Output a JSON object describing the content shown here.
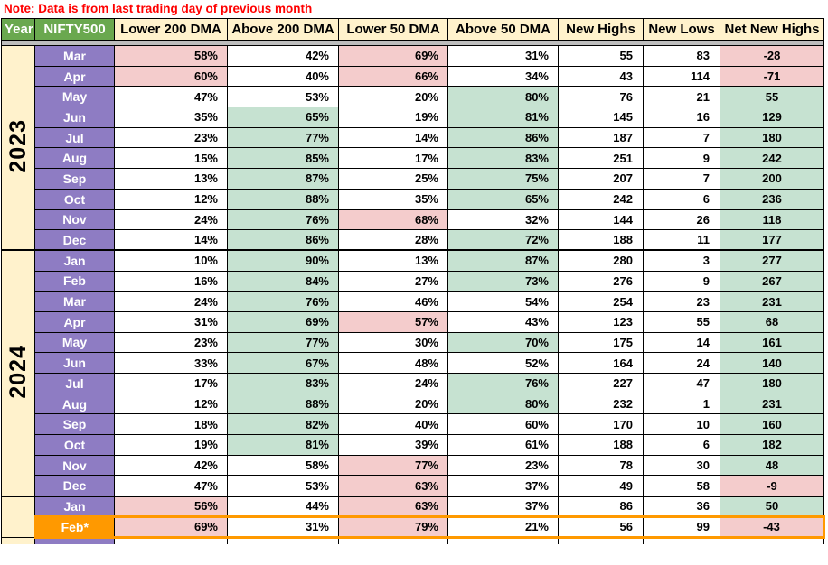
{
  "note": "Note: Data is from last trading day of previous month",
  "colors": {
    "note_red": "#FF0000",
    "header_green": "#6AA84F",
    "header_cream": "#FFF2CC",
    "month_purple": "#8E7CC3",
    "highlight_orange": "#FF9900",
    "bearish_pink": "#F4CCCC",
    "bullish_green": "#C6E2D1",
    "divider_gray": "#BDBDBD"
  },
  "table": {
    "columns": [
      {
        "label": "Year",
        "theme": "green"
      },
      {
        "label": "NIFTY500",
        "theme": "green"
      },
      {
        "label": "Lower 200 DMA",
        "theme": "cream"
      },
      {
        "label": "Above 200 DMA",
        "theme": "cream"
      },
      {
        "label": "Lower 50 DMA",
        "theme": "cream"
      },
      {
        "label": "Above 50 DMA",
        "theme": "cream"
      },
      {
        "label": "New Highs",
        "theme": "cream"
      },
      {
        "label": "New Lows",
        "theme": "cream"
      },
      {
        "label": "Net New Highs",
        "theme": "cream"
      }
    ],
    "year_groups": [
      {
        "label": "2023",
        "start": 0,
        "count": 10
      },
      {
        "label": "2024",
        "start": 10,
        "count": 12
      },
      {
        "label": "",
        "start": 22,
        "count": 2
      }
    ],
    "rows": [
      {
        "month": "Mar",
        "values": [
          "58%",
          "42%",
          "69%",
          "31%",
          "55",
          "83",
          "-28"
        ],
        "fills": [
          "p",
          "w",
          "p",
          "w",
          "w",
          "w",
          "p"
        ],
        "highlight": false
      },
      {
        "month": "Apr",
        "values": [
          "60%",
          "40%",
          "66%",
          "34%",
          "43",
          "114",
          "-71"
        ],
        "fills": [
          "p",
          "w",
          "p",
          "w",
          "w",
          "w",
          "p"
        ],
        "highlight": false
      },
      {
        "month": "May",
        "values": [
          "47%",
          "53%",
          "20%",
          "80%",
          "76",
          "21",
          "55"
        ],
        "fills": [
          "w",
          "w",
          "w",
          "g",
          "w",
          "w",
          "g"
        ],
        "highlight": false
      },
      {
        "month": "Jun",
        "values": [
          "35%",
          "65%",
          "19%",
          "81%",
          "145",
          "16",
          "129"
        ],
        "fills": [
          "w",
          "g",
          "w",
          "g",
          "w",
          "w",
          "g"
        ],
        "highlight": false
      },
      {
        "month": "Jul",
        "values": [
          "23%",
          "77%",
          "14%",
          "86%",
          "187",
          "7",
          "180"
        ],
        "fills": [
          "w",
          "g",
          "w",
          "g",
          "w",
          "w",
          "g"
        ],
        "highlight": false
      },
      {
        "month": "Aug",
        "values": [
          "15%",
          "85%",
          "17%",
          "83%",
          "251",
          "9",
          "242"
        ],
        "fills": [
          "w",
          "g",
          "w",
          "g",
          "w",
          "w",
          "g"
        ],
        "highlight": false
      },
      {
        "month": "Sep",
        "values": [
          "13%",
          "87%",
          "25%",
          "75%",
          "207",
          "7",
          "200"
        ],
        "fills": [
          "w",
          "g",
          "w",
          "g",
          "w",
          "w",
          "g"
        ],
        "highlight": false
      },
      {
        "month": "Oct",
        "values": [
          "12%",
          "88%",
          "35%",
          "65%",
          "242",
          "6",
          "236"
        ],
        "fills": [
          "w",
          "g",
          "w",
          "g",
          "w",
          "w",
          "g"
        ],
        "highlight": false
      },
      {
        "month": "Nov",
        "values": [
          "24%",
          "76%",
          "68%",
          "32%",
          "144",
          "26",
          "118"
        ],
        "fills": [
          "w",
          "g",
          "p",
          "w",
          "w",
          "w",
          "g"
        ],
        "highlight": false
      },
      {
        "month": "Dec",
        "values": [
          "14%",
          "86%",
          "28%",
          "72%",
          "188",
          "11",
          "177"
        ],
        "fills": [
          "w",
          "g",
          "w",
          "g",
          "w",
          "w",
          "g"
        ],
        "highlight": false
      },
      {
        "month": "Jan",
        "values": [
          "10%",
          "90%",
          "13%",
          "87%",
          "280",
          "3",
          "277"
        ],
        "fills": [
          "w",
          "g",
          "w",
          "g",
          "w",
          "w",
          "g"
        ],
        "highlight": false
      },
      {
        "month": "Feb",
        "values": [
          "16%",
          "84%",
          "27%",
          "73%",
          "276",
          "9",
          "267"
        ],
        "fills": [
          "w",
          "g",
          "w",
          "g",
          "w",
          "w",
          "g"
        ],
        "highlight": false
      },
      {
        "month": "Mar",
        "values": [
          "24%",
          "76%",
          "46%",
          "54%",
          "254",
          "23",
          "231"
        ],
        "fills": [
          "w",
          "g",
          "w",
          "w",
          "w",
          "w",
          "g"
        ],
        "highlight": false
      },
      {
        "month": "Apr",
        "values": [
          "31%",
          "69%",
          "57%",
          "43%",
          "123",
          "55",
          "68"
        ],
        "fills": [
          "w",
          "g",
          "p",
          "w",
          "w",
          "w",
          "g"
        ],
        "highlight": false
      },
      {
        "month": "May",
        "values": [
          "23%",
          "77%",
          "30%",
          "70%",
          "175",
          "14",
          "161"
        ],
        "fills": [
          "w",
          "g",
          "w",
          "g",
          "w",
          "w",
          "g"
        ],
        "highlight": false
      },
      {
        "month": "Jun",
        "values": [
          "33%",
          "67%",
          "48%",
          "52%",
          "164",
          "24",
          "140"
        ],
        "fills": [
          "w",
          "g",
          "w",
          "w",
          "w",
          "w",
          "g"
        ],
        "highlight": false
      },
      {
        "month": "Jul",
        "values": [
          "17%",
          "83%",
          "24%",
          "76%",
          "227",
          "47",
          "180"
        ],
        "fills": [
          "w",
          "g",
          "w",
          "g",
          "w",
          "w",
          "g"
        ],
        "highlight": false
      },
      {
        "month": "Aug",
        "values": [
          "12%",
          "88%",
          "20%",
          "80%",
          "232",
          "1",
          "231"
        ],
        "fills": [
          "w",
          "g",
          "w",
          "g",
          "w",
          "w",
          "g"
        ],
        "highlight": false
      },
      {
        "month": "Sep",
        "values": [
          "18%",
          "82%",
          "40%",
          "60%",
          "170",
          "10",
          "160"
        ],
        "fills": [
          "w",
          "g",
          "w",
          "w",
          "w",
          "w",
          "g"
        ],
        "highlight": false
      },
      {
        "month": "Oct",
        "values": [
          "19%",
          "81%",
          "39%",
          "61%",
          "188",
          "6",
          "182"
        ],
        "fills": [
          "w",
          "g",
          "w",
          "w",
          "w",
          "w",
          "g"
        ],
        "highlight": false
      },
      {
        "month": "Nov",
        "values": [
          "42%",
          "58%",
          "77%",
          "23%",
          "78",
          "30",
          "48"
        ],
        "fills": [
          "w",
          "w",
          "p",
          "w",
          "w",
          "w",
          "g"
        ],
        "highlight": false
      },
      {
        "month": "Dec",
        "values": [
          "47%",
          "53%",
          "63%",
          "37%",
          "49",
          "58",
          "-9"
        ],
        "fills": [
          "w",
          "w",
          "p",
          "w",
          "w",
          "w",
          "p"
        ],
        "highlight": false
      },
      {
        "month": "Jan",
        "values": [
          "56%",
          "44%",
          "63%",
          "37%",
          "86",
          "36",
          "50"
        ],
        "fills": [
          "p",
          "w",
          "p",
          "w",
          "w",
          "w",
          "g"
        ],
        "highlight": false
      },
      {
        "month": "Feb*",
        "values": [
          "69%",
          "31%",
          "79%",
          "21%",
          "56",
          "99",
          "-43"
        ],
        "fills": [
          "p",
          "w",
          "p",
          "w",
          "w",
          "w",
          "p"
        ],
        "highlight": true
      }
    ]
  }
}
